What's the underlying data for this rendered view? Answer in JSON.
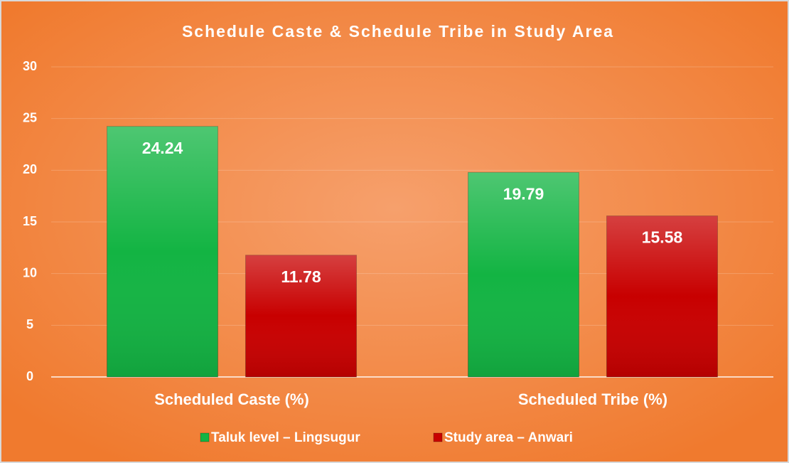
{
  "chart_data": {
    "type": "bar",
    "title": "Schedule Caste & Schedule Tribe in Study Area",
    "categories": [
      "Scheduled Caste (%)",
      "Scheduled Tribe (%)"
    ],
    "series": [
      {
        "name": "Taluk level – Lingsugur",
        "color": "#13b443",
        "values": [
          24.24,
          19.79
        ]
      },
      {
        "name": "Study area – Anwari",
        "color": "#c80000",
        "values": [
          11.78,
          15.58
        ]
      }
    ],
    "ylim": [
      0,
      30
    ],
    "yticks": [
      0,
      5,
      10,
      15,
      20,
      25,
      30
    ],
    "grid": true,
    "legend": "bottom"
  }
}
